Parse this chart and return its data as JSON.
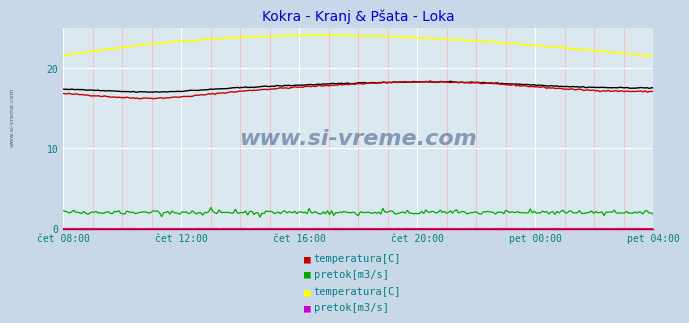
{
  "title": "Kokra - Kranj & Pšata - Loka",
  "title_color": "#0000cc",
  "bg_color": "#c8d8e8",
  "plot_bg_color": "#dce8f0",
  "grid_color_major": "#ffffff",
  "grid_color_minor": "#ffb0b0",
  "watermark": "www.si-vreme.com",
  "watermark_color": "#1a3a6e",
  "xtick_labels": [
    "čet 08:00",
    "čet 12:00",
    "čet 16:00",
    "čet 20:00",
    "pet 00:00",
    "pet 04:00"
  ],
  "ylim": [
    0,
    25
  ],
  "xlim_max": 288,
  "n_points": 289,
  "kokra_temp_color": "#cc0000",
  "kokra_visina_color": "#000000",
  "kokra_pretok_color": "#00aa00",
  "psata_temp_color": "#ffff00",
  "psata_pretok_color": "#cc00cc",
  "legend_font_color": "#008080",
  "legend_font_size": 7.5,
  "tick_color": "#008080",
  "tick_fontsize": 7,
  "spine_color": "#cc0000",
  "watermark_fontsize": 16
}
